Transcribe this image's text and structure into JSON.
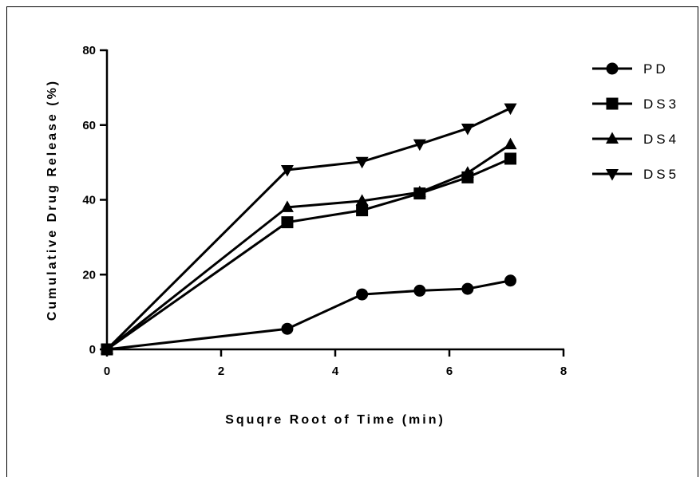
{
  "chart_data": {
    "type": "line",
    "xlabel": "Squqre Root of Time (min)",
    "ylabel": "Cumulative Drug Release (%)",
    "xlim": [
      0,
      8
    ],
    "ylim": [
      0,
      80
    ],
    "xticks": [
      0,
      2,
      4,
      6,
      8
    ],
    "yticks": [
      0,
      20,
      40,
      60,
      80
    ],
    "grid": false,
    "legend_position": "top-right",
    "x": [
      0,
      3.16,
      4.47,
      5.48,
      6.32,
      7.07
    ],
    "series": [
      {
        "name": "PD",
        "marker": "circle",
        "values": [
          0,
          5.5,
          14.7,
          15.7,
          16.2,
          18.4
        ]
      },
      {
        "name": "DS3",
        "marker": "square",
        "values": [
          0,
          34.0,
          37.2,
          41.7,
          46.0,
          51.0
        ]
      },
      {
        "name": "DS4",
        "marker": "triangle-up",
        "values": [
          0,
          38.0,
          39.7,
          42.0,
          47.2,
          54.8
        ]
      },
      {
        "name": "DS5",
        "marker": "triangle-down",
        "values": [
          0,
          48.0,
          50.2,
          54.9,
          59.1,
          64.5
        ]
      }
    ],
    "colors": {
      "line": "#000000",
      "marker": "#000000"
    }
  }
}
